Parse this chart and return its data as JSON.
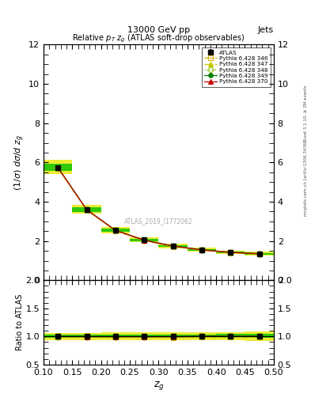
{
  "title_top": "13000 GeV pp",
  "title_right": "Jets",
  "plot_title": "Relative $p_T$ $z_g$ (ATLAS soft-drop observables)",
  "xlabel": "$z_g$",
  "ylabel_main": "$(1/\\sigma)$ $d\\sigma/d$ $z_g$",
  "ylabel_ratio": "Ratio to ATLAS",
  "watermark": "ATLAS_2019_I1772062",
  "right_label_top": "Rivet 3.1.10, ≥ 3M events",
  "right_label_bot": "mcplots.cern.ch [arXiv:1306.3436]",
  "xdata": [
    0.125,
    0.175,
    0.225,
    0.275,
    0.325,
    0.375,
    0.425,
    0.475
  ],
  "atlas_y": [
    5.75,
    3.6,
    2.55,
    2.05,
    1.75,
    1.55,
    1.42,
    1.35
  ],
  "atlas_yerr_lo": [
    0.12,
    0.07,
    0.05,
    0.04,
    0.03,
    0.03,
    0.03,
    0.03
  ],
  "atlas_yerr_hi": [
    0.12,
    0.07,
    0.05,
    0.04,
    0.03,
    0.03,
    0.03,
    0.03
  ],
  "py346_y": [
    5.72,
    3.58,
    2.53,
    2.03,
    1.73,
    1.54,
    1.41,
    1.34
  ],
  "py347_y": [
    5.7,
    3.57,
    2.52,
    2.02,
    1.72,
    1.53,
    1.4,
    1.33
  ],
  "py348_y": [
    5.73,
    3.59,
    2.54,
    2.04,
    1.74,
    1.55,
    1.42,
    1.35
  ],
  "py349_y": [
    5.75,
    3.6,
    2.55,
    2.05,
    1.75,
    1.56,
    1.43,
    1.36
  ],
  "py370_y": [
    5.74,
    3.59,
    2.54,
    2.04,
    1.74,
    1.55,
    1.42,
    1.35
  ],
  "color_346": "#d4aa00",
  "color_347": "#c8c800",
  "color_348": "#90c000",
  "color_349": "#008000",
  "color_370": "#c80000",
  "atlas_color": "#000000",
  "band_yellow": "#e8e800",
  "band_green": "#00c000",
  "ylim_main": [
    0,
    12
  ],
  "ylim_ratio": [
    0.5,
    2.0
  ],
  "yticks_main": [
    0,
    2,
    4,
    6,
    8,
    10,
    12
  ],
  "yticks_ratio": [
    0.5,
    1.0,
    1.5,
    2.0
  ],
  "band_yellow_ratio_lo": [
    0.94,
    0.94,
    0.93,
    0.93,
    0.93,
    0.93,
    0.93,
    0.92
  ],
  "band_yellow_ratio_hi": [
    1.06,
    1.06,
    1.07,
    1.07,
    1.07,
    1.07,
    1.08,
    1.09
  ],
  "band_green_ratio_lo": [
    0.97,
    0.97,
    0.97,
    0.97,
    0.97,
    0.97,
    0.97,
    0.97
  ],
  "band_green_ratio_hi": [
    1.03,
    1.03,
    1.03,
    1.03,
    1.03,
    1.03,
    1.04,
    1.04
  ]
}
